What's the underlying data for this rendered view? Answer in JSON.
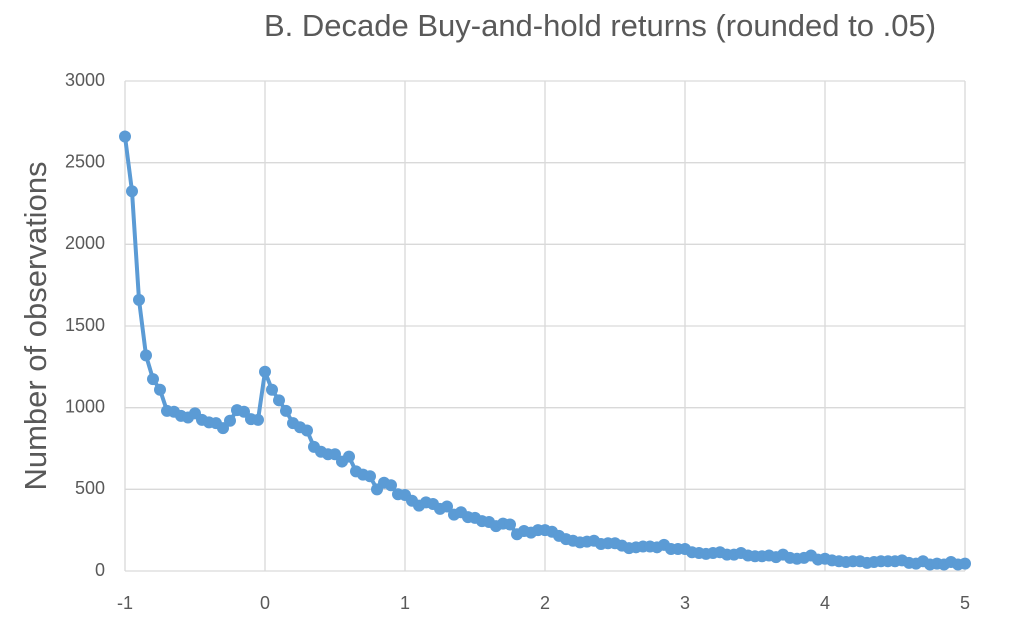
{
  "chart_data": {
    "type": "line",
    "title": "B. Decade Buy-and-hold returns (rounded to .05)",
    "y_label": "Number of observations",
    "x": [
      -1,
      -0.95,
      -0.9,
      -0.85,
      -0.8,
      -0.75,
      -0.7,
      -0.65,
      -0.6,
      -0.55,
      -0.5,
      -0.45,
      -0.4,
      -0.35,
      -0.3,
      -0.25,
      -0.2,
      -0.15,
      -0.1,
      -0.05,
      0,
      0.05,
      0.1,
      0.15,
      0.2,
      0.25,
      0.3,
      0.35,
      0.4,
      0.45,
      0.5,
      0.55,
      0.6,
      0.65,
      0.7,
      0.75,
      0.8,
      0.85,
      0.9,
      0.95,
      1,
      1.05,
      1.1,
      1.15,
      1.2,
      1.25,
      1.3,
      1.35,
      1.4,
      1.45,
      1.5,
      1.55,
      1.6,
      1.65,
      1.7,
      1.75,
      1.8,
      1.85,
      1.9,
      1.95,
      2,
      2.05,
      2.1,
      2.15,
      2.2,
      2.25,
      2.3,
      2.35,
      2.4,
      2.45,
      2.5,
      2.55,
      2.6,
      2.65,
      2.7,
      2.75,
      2.8,
      2.85,
      2.9,
      2.95,
      3,
      3.05,
      3.1,
      3.15,
      3.2,
      3.25,
      3.3,
      3.35,
      3.4,
      3.45,
      3.5,
      3.55,
      3.6,
      3.65,
      3.7,
      3.75,
      3.8,
      3.85,
      3.9,
      3.95,
      4,
      4.05,
      4.1,
      4.15,
      4.2,
      4.25,
      4.3,
      4.35,
      4.4,
      4.45,
      4.5,
      4.55,
      4.6,
      4.65,
      4.7,
      4.75,
      4.8,
      4.85,
      4.9,
      4.95,
      5
    ],
    "series": [
      {
        "color": "#5b9bd5",
        "values": [
          2660,
          2325,
          1660,
          1320,
          1175,
          1110,
          980,
          975,
          950,
          940,
          965,
          925,
          910,
          905,
          875,
          920,
          985,
          975,
          930,
          925,
          1220,
          1110,
          1045,
          980,
          905,
          880,
          860,
          760,
          730,
          715,
          715,
          670,
          700,
          610,
          590,
          580,
          500,
          540,
          525,
          470,
          465,
          430,
          400,
          420,
          410,
          380,
          395,
          345,
          360,
          330,
          325,
          305,
          300,
          275,
          290,
          285,
          225,
          245,
          235,
          250,
          250,
          240,
          215,
          195,
          185,
          175,
          180,
          185,
          165,
          170,
          170,
          155,
          140,
          145,
          150,
          150,
          145,
          160,
          135,
          135,
          135,
          115,
          110,
          105,
          110,
          115,
          100,
          100,
          110,
          95,
          90,
          90,
          95,
          85,
          100,
          80,
          75,
          80,
          95,
          70,
          75,
          65,
          60,
          55,
          60,
          60,
          50,
          55,
          60,
          60,
          60,
          65,
          50,
          45,
          60,
          40,
          45,
          40,
          55,
          40,
          45
        ]
      }
    ],
    "xlim": [
      -1,
      5
    ],
    "xticks": [
      -1,
      0,
      1,
      2,
      3,
      4,
      5
    ],
    "ylim": [
      0,
      3000
    ],
    "yticks": [
      0,
      500,
      1000,
      1500,
      2000,
      2500,
      3000
    ],
    "grid": true
  }
}
